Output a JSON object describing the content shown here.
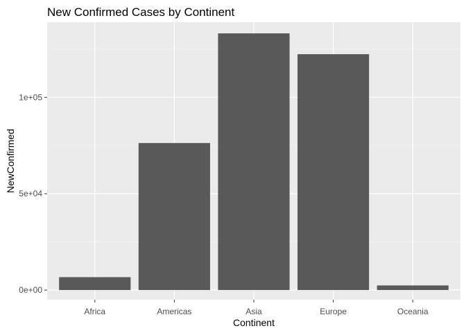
{
  "chart_data": {
    "type": "bar",
    "title": "New Confirmed Cases by Continent",
    "xlabel": "Continent",
    "ylabel": "NewConfirmed",
    "categories": [
      "Africa",
      "Americas",
      "Asia",
      "Europe",
      "Oceania"
    ],
    "values": [
      6700,
      76300,
      133200,
      122400,
      2400
    ],
    "ylim": [
      -5000,
      139000
    ],
    "yticks": [
      0,
      50000,
      100000
    ],
    "ytick_labels": [
      "0e+00",
      "5e+04",
      "1e+05"
    ],
    "grid": true,
    "colors": {
      "bar": "#595959",
      "panel_background": "#ebebeb",
      "grid_major": "#ffffff",
      "grid_minor": "#f5f5f5",
      "tick": "#333333"
    }
  }
}
